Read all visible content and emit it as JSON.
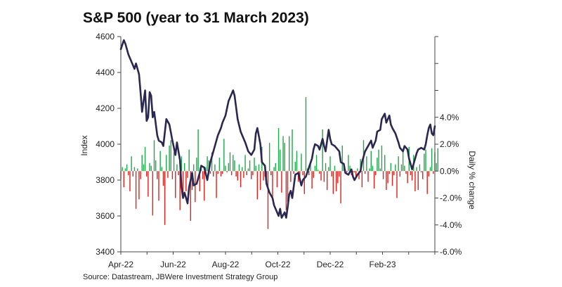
{
  "chart_data": {
    "type": "bar+line",
    "title": "S&P 500 (year to 31 March 2023)",
    "source": "Source: Datastream, JBWere Investment Strategy Group",
    "xlabel": "",
    "ylabel_left": "Index",
    "ylabel_right": "Daily % change",
    "x_ticks": [
      "Apr-22",
      "Jun-22",
      "Aug-22",
      "Oct-22",
      "Dec-22",
      "Feb-23"
    ],
    "y_left": {
      "min": 3400,
      "max": 4600,
      "step": 200,
      "ticks": [
        "3400",
        "3600",
        "3800",
        "4000",
        "4200",
        "4400",
        "4600"
      ]
    },
    "y_right": {
      "min": -6.0,
      "max": 10.0,
      "labeled_ticks": [
        "-6.0%",
        "-4.0%",
        "-2.0%",
        "0.0%",
        "2.0%",
        "4.0%"
      ]
    },
    "colors": {
      "line": "#2a2750",
      "up_bar": "#1fa84a",
      "down_bar": "#e0201b",
      "axis": "#444444"
    },
    "line_series": {
      "name": "",
      "points": [
        [
          0,
          4530
        ],
        [
          2,
          4580
        ],
        [
          3,
          4560
        ],
        [
          5,
          4500
        ],
        [
          7,
          4460
        ],
        [
          9,
          4420
        ],
        [
          10,
          4450
        ],
        [
          12,
          4390
        ],
        [
          13,
          4290
        ],
        [
          14,
          4180
        ],
        [
          16,
          4300
        ],
        [
          17,
          4130
        ],
        [
          18,
          4150
        ],
        [
          19,
          4290
        ],
        [
          20,
          4270
        ],
        [
          21,
          4150
        ],
        [
          22,
          4180
        ],
        [
          24,
          4050
        ],
        [
          25,
          4020
        ],
        [
          27,
          4010
        ],
        [
          28,
          3990
        ],
        [
          30,
          4140
        ],
        [
          32,
          4110
        ],
        [
          34,
          4020
        ],
        [
          36,
          3940
        ],
        [
          37,
          4010
        ],
        [
          39,
          3910
        ],
        [
          40,
          3760
        ],
        [
          41,
          3700
        ],
        [
          42,
          3730
        ],
        [
          44,
          3670
        ],
        [
          45,
          3760
        ],
        [
          47,
          3840
        ],
        [
          48,
          3770
        ],
        [
          50,
          3780
        ],
        [
          52,
          3840
        ],
        [
          53,
          3880
        ],
        [
          55,
          3870
        ],
        [
          57,
          3800
        ],
        [
          59,
          3900
        ],
        [
          60,
          3930
        ],
        [
          62,
          3990
        ],
        [
          64,
          4050
        ],
        [
          66,
          4090
        ],
        [
          67,
          4120
        ],
        [
          69,
          4160
        ],
        [
          71,
          4240
        ],
        [
          73,
          4280
        ],
        [
          74,
          4300
        ],
        [
          75,
          4270
        ],
        [
          77,
          4140
        ],
        [
          79,
          4070
        ],
        [
          81,
          4030
        ],
        [
          82,
          4010
        ],
        [
          84,
          3960
        ],
        [
          86,
          3940
        ],
        [
          88,
          3970
        ],
        [
          89,
          4060
        ],
        [
          90,
          4090
        ],
        [
          92,
          4000
        ],
        [
          93,
          3900
        ],
        [
          95,
          3880
        ],
        [
          96,
          3780
        ],
        [
          98,
          3730
        ],
        [
          100,
          3700
        ],
        [
          101,
          3660
        ],
        [
          103,
          3620
        ],
        [
          104,
          3600
        ],
        [
          105,
          3640
        ],
        [
          106,
          3590
        ],
        [
          108,
          3620
        ],
        [
          109,
          3590
        ],
        [
          110,
          3650
        ],
        [
          111,
          3720
        ],
        [
          112,
          3740
        ],
        [
          113,
          3700
        ],
        [
          115,
          3830
        ],
        [
          117,
          3840
        ],
        [
          119,
          3770
        ],
        [
          120,
          3800
        ],
        [
          122,
          3820
        ],
        [
          124,
          3870
        ],
        [
          126,
          3920
        ],
        [
          127,
          3970
        ],
        [
          128,
          4000
        ],
        [
          130,
          3990
        ],
        [
          131,
          3970
        ],
        [
          133,
          4030
        ],
        [
          134,
          3990
        ],
        [
          135,
          3960
        ],
        [
          137,
          4080
        ],
        [
          138,
          4030
        ],
        [
          139,
          4000
        ],
        [
          141,
          3990
        ],
        [
          143,
          3970
        ],
        [
          144,
          3960
        ],
        [
          145,
          3900
        ],
        [
          147,
          3890
        ],
        [
          148,
          3840
        ],
        [
          150,
          3830
        ],
        [
          152,
          3860
        ],
        [
          153,
          3820
        ],
        [
          154,
          3800
        ],
        [
          156,
          3830
        ],
        [
          158,
          3850
        ],
        [
          159,
          3900
        ],
        [
          161,
          3960
        ],
        [
          163,
          3990
        ],
        [
          165,
          4020
        ],
        [
          166,
          3980
        ],
        [
          168,
          4020
        ],
        [
          169,
          4070
        ],
        [
          171,
          4080
        ],
        [
          172,
          4140
        ],
        [
          174,
          4170
        ],
        [
          175,
          4120
        ],
        [
          177,
          4160
        ],
        [
          178,
          4110
        ],
        [
          179,
          4090
        ],
        [
          181,
          4060
        ],
        [
          183,
          4010
        ],
        [
          184,
          3980
        ],
        [
          186,
          3960
        ],
        [
          187,
          3990
        ],
        [
          189,
          3970
        ],
        [
          190,
          3920
        ],
        [
          192,
          3860
        ],
        [
          193,
          3890
        ],
        [
          195,
          3950
        ],
        [
          196,
          3970
        ],
        [
          198,
          3980
        ],
        [
          200,
          3970
        ],
        [
          201,
          4000
        ],
        [
          202,
          4050
        ],
        [
          203,
          4090
        ],
        [
          204,
          4110
        ],
        [
          205,
          4060
        ],
        [
          206,
          4050
        ],
        [
          207,
          4100
        ]
      ]
    },
    "bar_series": {
      "name": "",
      "values": [
        -0.6,
        0.3,
        -1.2,
        0.2,
        0.5,
        -0.3,
        -1.5,
        1.1,
        -0.4,
        0.3,
        -2.8,
        0.2,
        -2.1,
        -0.6,
        1.2,
        0.5,
        1.8,
        -0.4,
        -1.9,
        0.6,
        0.4,
        -3.3,
        2.3,
        0.8,
        -0.6,
        -2.2,
        1.5,
        0.3,
        -1.1,
        -4.0,
        1.2,
        -0.5,
        1.9,
        2.3,
        -0.6,
        1.4,
        -2.0,
        0.5,
        -0.3,
        -2.9,
        1.1,
        -1.7,
        0.6,
        -1.5,
        -0.5,
        1.6,
        -3.7,
        -1.4,
        0.5,
        -2.3,
        1.0,
        3.1,
        -1.5,
        0.4,
        -0.6,
        -2.2,
        0.3,
        1.1,
        0.8,
        -0.2,
        1.4,
        -0.4,
        0.5,
        -2.0,
        -0.2,
        1.0,
        -0.4,
        -0.2,
        2.4,
        0.4,
        -0.1,
        0.6,
        1.4,
        -0.3,
        1.2,
        0.8,
        -0.4,
        -0.7,
        0.5,
        -1.2,
        0.3,
        -0.5,
        1.2,
        -0.3,
        0.2,
        0.8,
        -0.6,
        -0.3,
        1.0,
        0.4,
        -2.1,
        0.5,
        -1.4,
        1.8,
        -0.7,
        -0.4,
        -0.5,
        -4.3,
        2.1,
        -0.3,
        -2.1,
        0.3,
        0.6,
        -1.2,
        3.2,
        1.6,
        -1.6,
        2.6,
        2.1,
        -2.9,
        -2.3,
        2.6,
        -0.8,
        3.1,
        -0.2,
        0.7,
        1.5,
        -0.8,
        -0.6,
        1.3,
        -0.3,
        -1.7,
        5.5,
        0.2,
        -0.3,
        0.5,
        -1.3,
        -0.5,
        0.4,
        1.2,
        0.1,
        -0.2,
        -0.7,
        3.1,
        -0.8,
        0.6,
        -1.4,
        0.3,
        1.1,
        -0.4,
        -1.7,
        0.4,
        -1.5,
        -0.9,
        -0.4,
        -2.4,
        1.9,
        0.4,
        0.1,
        -0.1,
        1.2,
        0.4,
        -0.3,
        -0.1,
        -0.1,
        -0.4,
        0.2,
        -0.6,
        0.9,
        -1.2,
        2.3,
        -0.2,
        1.1,
        -0.8,
        0.2,
        1.5,
        0.4,
        -1.3,
        -0.3,
        1.0,
        1.6,
        0.2,
        1.9,
        -0.6,
        1.2,
        -1.4,
        -0.9,
        -0.2,
        0.6,
        -1.1,
        -0.3,
        0.5,
        -2.0,
        1.1,
        -0.4,
        0.5,
        1.6,
        0.4,
        -0.2,
        -0.9,
        1.8,
        -0.3,
        -0.7,
        1.2,
        -1.5,
        0.3,
        -1.4,
        0.5,
        -0.1,
        -0.6,
        1.3,
        1.6,
        -1.7,
        -0.4,
        0.3,
        1.7,
        -0.2,
        1.4,
        0.6,
        1.7
      ]
    }
  }
}
